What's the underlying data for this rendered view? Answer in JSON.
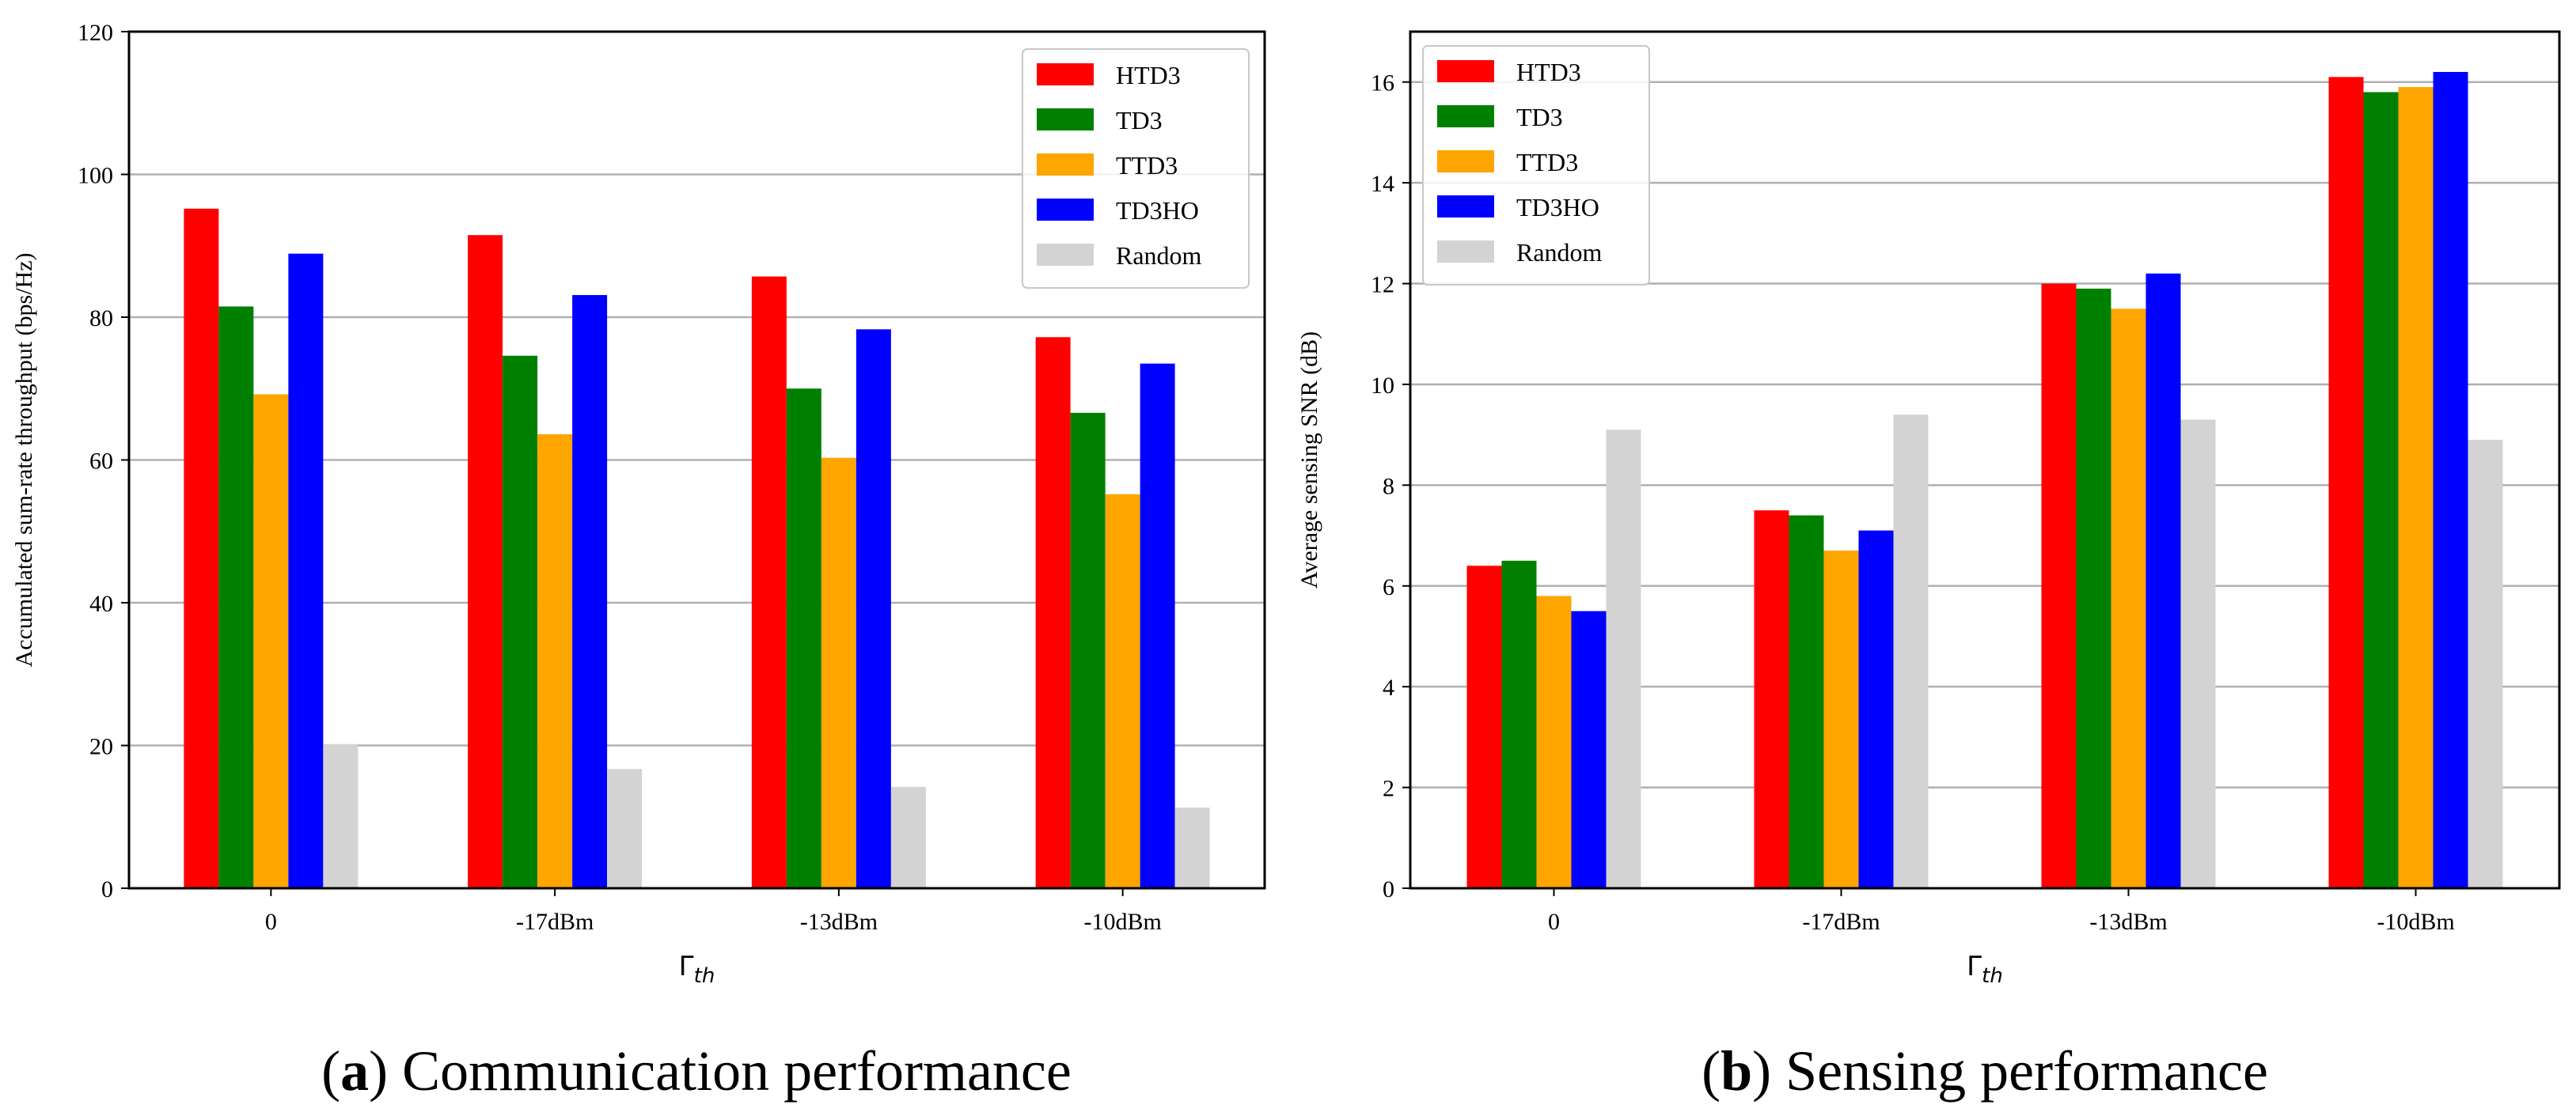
{
  "chart_data": [
    {
      "type": "bar",
      "caption_letter": "a",
      "caption_text": "Communication performance",
      "ylabel": "Accumulated sum-rate throughput (bps/Hz)",
      "xlabel_main": "Γ",
      "xlabel_sub": "th",
      "categories": [
        "0",
        "-17dBm",
        "-13dBm",
        "-10dBm"
      ],
      "ylim": [
        0,
        120
      ],
      "yticks": [
        0,
        20,
        40,
        60,
        80,
        100,
        120
      ],
      "grid": "y",
      "legend_position": "top-right",
      "series": [
        {
          "name": "HTD3",
          "color": "#ff0000",
          "values": [
            95.2,
            91.5,
            85.7,
            77.2
          ]
        },
        {
          "name": "TD3",
          "color": "#008000",
          "values": [
            81.5,
            74.6,
            70.0,
            66.6
          ]
        },
        {
          "name": "TTD3",
          "color": "#ffa500",
          "values": [
            69.2,
            63.6,
            60.3,
            55.2
          ]
        },
        {
          "name": "TD3HO",
          "color": "#0000ff",
          "values": [
            88.9,
            83.1,
            78.3,
            73.5
          ]
        },
        {
          "name": "Random",
          "color": "#d3d3d3",
          "values": [
            20.2,
            16.7,
            14.2,
            11.3
          ]
        }
      ]
    },
    {
      "type": "bar",
      "caption_letter": "b",
      "caption_text": "Sensing performance",
      "ylabel": "Average sensing SNR (dB)",
      "xlabel_main": "Γ",
      "xlabel_sub": "th",
      "categories": [
        "0",
        "-17dBm",
        "-13dBm",
        "-10dBm"
      ],
      "ylim": [
        0,
        17
      ],
      "yticks": [
        0,
        2,
        4,
        6,
        8,
        10,
        12,
        14,
        16
      ],
      "grid": "y",
      "legend_position": "top-left",
      "series": [
        {
          "name": "HTD3",
          "color": "#ff0000",
          "values": [
            6.4,
            7.5,
            12.0,
            16.1
          ]
        },
        {
          "name": "TD3",
          "color": "#008000",
          "values": [
            6.5,
            7.4,
            11.9,
            15.8
          ]
        },
        {
          "name": "TTD3",
          "color": "#ffa500",
          "values": [
            5.8,
            6.7,
            11.5,
            15.9
          ]
        },
        {
          "name": "TD3HO",
          "color": "#0000ff",
          "values": [
            5.5,
            7.1,
            12.2,
            16.2
          ]
        },
        {
          "name": "Random",
          "color": "#d3d3d3",
          "values": [
            9.1,
            9.4,
            9.3,
            8.9
          ]
        }
      ]
    }
  ]
}
